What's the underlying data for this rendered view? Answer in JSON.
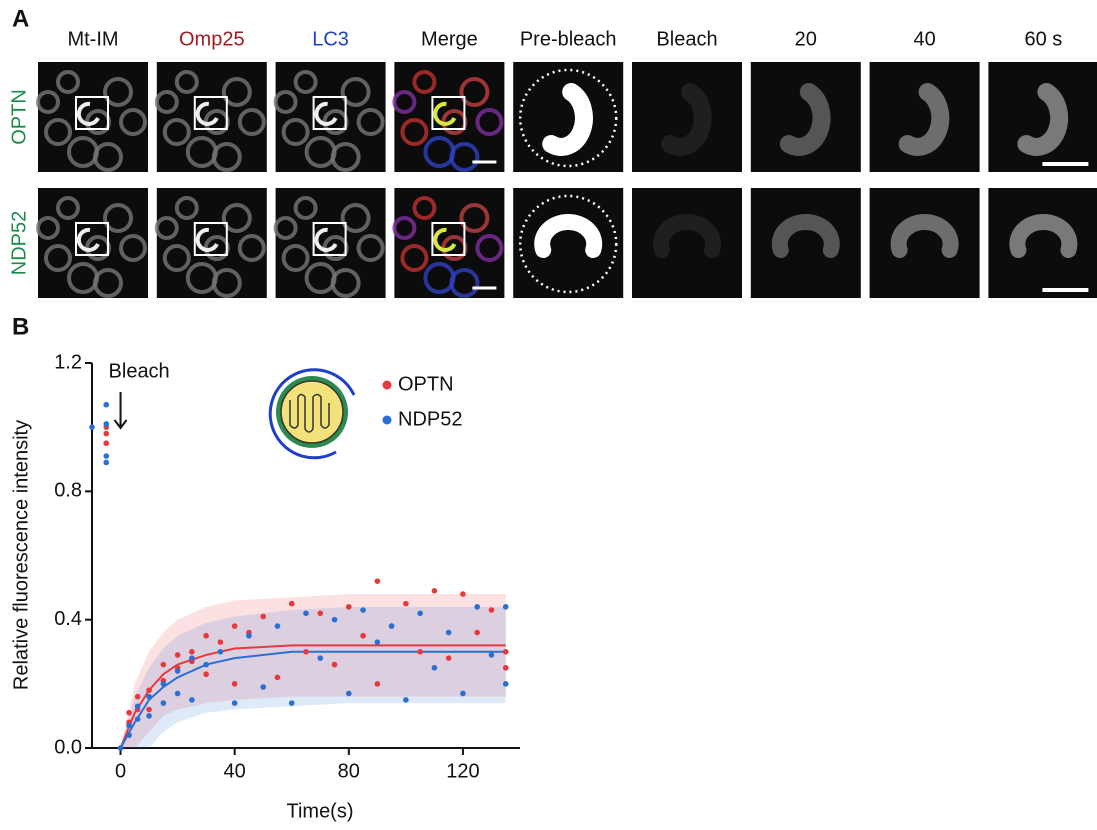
{
  "panel_a": {
    "label": "A",
    "columns": [
      "Mt-IM",
      "Omp25",
      "LC3",
      "Merge",
      "Pre-bleach",
      "Bleach",
      "20",
      "40",
      "60 s"
    ],
    "rows": [
      "OPTN",
      "NDP52"
    ]
  },
  "panel_b_label": "B",
  "chart_data": {
    "type": "scatter",
    "x_label": "Time(s)",
    "y_label": "Relative fluorescence intensity",
    "annotation": {
      "text": "Bleach",
      "x": 0
    },
    "xlim": [
      -10,
      140
    ],
    "xticks": [
      0,
      40,
      80,
      120
    ],
    "ylim": [
      0,
      1.2
    ],
    "yticks": [
      {
        "value": 0,
        "label": "0.0"
      },
      {
        "value": 0.4,
        "label": "0.4"
      },
      {
        "value": 0.8,
        "label": "0.8"
      },
      {
        "value": 1.2,
        "label": "1.2"
      }
    ],
    "legend": "top",
    "fit_x": [
      0,
      5,
      10,
      15,
      20,
      30,
      40,
      60,
      80,
      100,
      120,
      135
    ],
    "series": [
      {
        "name": "OPTN",
        "color": "#e8383d",
        "x": [
          -5,
          -5,
          -5,
          0,
          3,
          3,
          6,
          6,
          10,
          10,
          15,
          15,
          20,
          20,
          25,
          25,
          30,
          30,
          35,
          40,
          40,
          45,
          50,
          55,
          60,
          65,
          70,
          75,
          80,
          85,
          90,
          90,
          95,
          100,
          105,
          110,
          115,
          120,
          125,
          130,
          135,
          135
        ],
        "values": [
          1.0,
          0.98,
          0.95,
          0,
          0.08,
          0.11,
          0.12,
          0.16,
          0.18,
          0.12,
          0.21,
          0.26,
          0.25,
          0.29,
          0.27,
          0.3,
          0.35,
          0.23,
          0.33,
          0.38,
          0.2,
          0.36,
          0.41,
          0.22,
          0.45,
          0.3,
          0.42,
          0.26,
          0.44,
          0.35,
          0.52,
          0.2,
          0.38,
          0.45,
          0.3,
          0.49,
          0.28,
          0.48,
          0.36,
          0.43,
          0.25,
          0.3
        ],
        "fit": [
          0,
          0.11,
          0.18,
          0.23,
          0.26,
          0.29,
          0.31,
          0.32,
          0.32,
          0.32,
          0.32,
          0.32
        ],
        "band_low": [
          0,
          0,
          0.05,
          0.1,
          0.12,
          0.14,
          0.15,
          0.16,
          0.16,
          0.16,
          0.16,
          0.16
        ],
        "band_high": [
          0,
          0.2,
          0.3,
          0.36,
          0.4,
          0.44,
          0.46,
          0.47,
          0.48,
          0.48,
          0.48,
          0.48
        ]
      },
      {
        "name": "NDP52",
        "color": "#2a6fd6",
        "x": [
          -10,
          -5,
          -5,
          -5,
          -5,
          0,
          3,
          3,
          6,
          6,
          10,
          10,
          15,
          15,
          20,
          20,
          25,
          25,
          30,
          35,
          40,
          45,
          50,
          55,
          60,
          65,
          70,
          75,
          80,
          85,
          90,
          95,
          100,
          105,
          110,
          115,
          120,
          125,
          130,
          135,
          135
        ],
        "values": [
          1.0,
          1.07,
          1.01,
          0.91,
          0.89,
          0,
          0.04,
          0.07,
          0.09,
          0.13,
          0.1,
          0.16,
          0.14,
          0.2,
          0.17,
          0.24,
          0.15,
          0.28,
          0.26,
          0.3,
          0.14,
          0.35,
          0.19,
          0.38,
          0.14,
          0.42,
          0.28,
          0.4,
          0.17,
          0.43,
          0.33,
          0.38,
          0.15,
          0.42,
          0.25,
          0.36,
          0.17,
          0.44,
          0.29,
          0.44,
          0.2
        ],
        "fit": [
          0,
          0.08,
          0.15,
          0.19,
          0.22,
          0.26,
          0.28,
          0.3,
          0.3,
          0.3,
          0.3,
          0.3
        ],
        "band_low": [
          0,
          0,
          0,
          0.05,
          0.08,
          0.11,
          0.12,
          0.13,
          0.14,
          0.14,
          0.14,
          0.14
        ],
        "band_high": [
          0,
          0.16,
          0.25,
          0.31,
          0.35,
          0.39,
          0.41,
          0.43,
          0.44,
          0.44,
          0.44,
          0.44
        ]
      }
    ]
  }
}
